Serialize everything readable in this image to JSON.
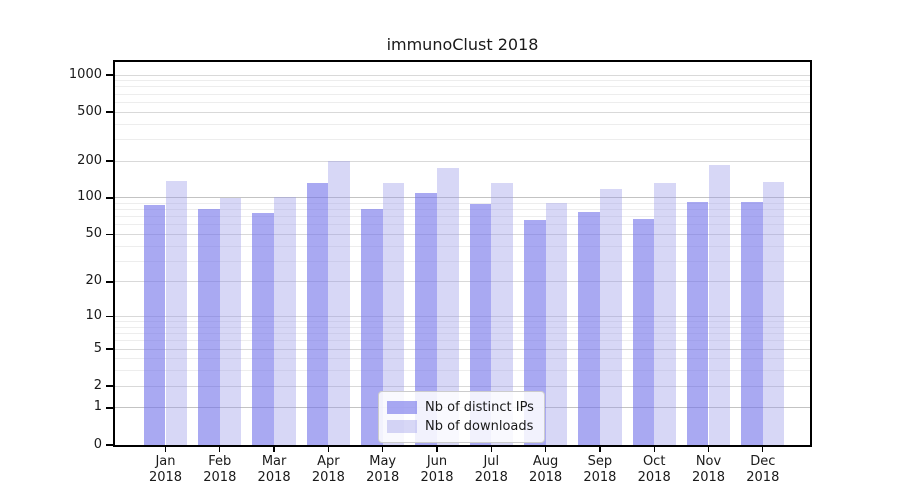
{
  "figure": {
    "title": "immunoClust 2018"
  },
  "chart_data": {
    "type": "bar",
    "title": "immunoClust 2018",
    "categories": [
      "Jan",
      "Feb",
      "Mar",
      "Apr",
      "May",
      "Jun",
      "Jul",
      "Aug",
      "Sep",
      "Oct",
      "Nov",
      "Dec"
    ],
    "year": "2018",
    "series": [
      {
        "name": "Nb of distinct IPs",
        "color": "rgba(112,112,233,0.60)",
        "values": [
          87,
          81,
          75,
          130,
          81,
          109,
          89,
          65,
          76,
          67,
          92,
          92
        ]
      },
      {
        "name": "Nb of downloads",
        "color": "rgba(149,149,232,0.38)",
        "values": [
          135,
          98,
          101,
          197,
          130,
          174,
          130,
          90,
          117,
          132,
          184,
          133
        ]
      }
    ],
    "yscale": "log1p",
    "yticks": [
      0,
      1,
      2,
      5,
      10,
      20,
      50,
      100,
      200,
      500,
      1000
    ],
    "minor_gridlines": [
      3,
      4,
      6,
      7,
      8,
      9,
      30,
      40,
      60,
      70,
      80,
      90,
      300,
      400,
      600,
      700,
      800,
      900
    ],
    "ylim": [
      0,
      1260
    ],
    "grid": true,
    "legend_position": "lower center",
    "colors": {
      "grid_major": "#d9d9d9",
      "grid_emphasis": "#c3c3c3",
      "grid_minor": "#ededed",
      "axis": "#000000",
      "text": "#1a1a1a"
    }
  }
}
